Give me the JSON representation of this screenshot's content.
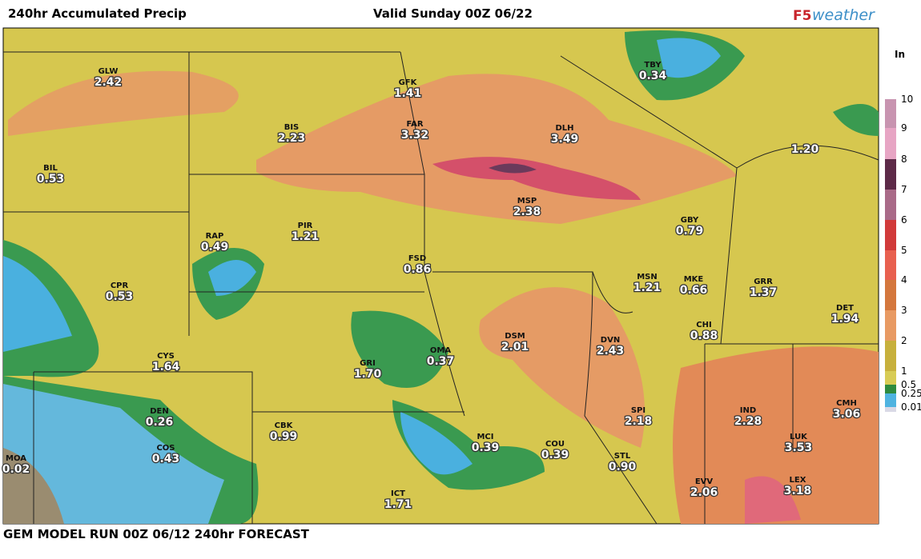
{
  "header": {
    "title": "240hr Accumulated Precip",
    "valid": "Valid Sunday 00Z 06/22",
    "logo_f5": "F5",
    "logo_weather": "weather"
  },
  "legend": {
    "unit": "In",
    "ticks": [
      "0.01",
      "0.25",
      "0.5",
      "1",
      "2",
      "3",
      "4",
      "5",
      "6",
      "7",
      "8",
      "9",
      "10"
    ],
    "colors": [
      "#d9d9e6",
      "#4fb3e0",
      "#2e8b3e",
      "#d8cc55",
      "#c7b03c",
      "#e89a63",
      "#d4773d",
      "#e8604f",
      "#d13a3a",
      "#a96a88",
      "#5d2a48",
      "#e7a5c4",
      "#c894b0"
    ]
  },
  "stations": [
    {
      "code": "GLW",
      "value": "2.42"
    },
    {
      "code": "GFK",
      "value": "1.41"
    },
    {
      "code": "TBY",
      "value": "0.34"
    },
    {
      "code": "BIS",
      "value": "2.23"
    },
    {
      "code": "FAR",
      "value": "3.32"
    },
    {
      "code": "DLH",
      "value": "3.49"
    },
    {
      "value": "1.20"
    },
    {
      "code": "BIL",
      "value": "0.53"
    },
    {
      "code": "MSP",
      "value": "2.38"
    },
    {
      "code": "GBY",
      "value": "0.79"
    },
    {
      "code": "RAP",
      "value": "0.49"
    },
    {
      "code": "PIR",
      "value": "1.21"
    },
    {
      "code": "FSD",
      "value": "0.86"
    },
    {
      "code": "MSN",
      "value": "1.21"
    },
    {
      "code": "MKE",
      "value": "0.66"
    },
    {
      "code": "GRR",
      "value": "1.37"
    },
    {
      "code": "CPR",
      "value": "0.53"
    },
    {
      "code": "DET",
      "value": "1.94"
    },
    {
      "code": "CHI",
      "value": "0.88"
    },
    {
      "code": "DSM",
      "value": "2.01"
    },
    {
      "code": "DVN",
      "value": "2.43"
    },
    {
      "code": "OMA",
      "value": "0.37"
    },
    {
      "code": "CYS",
      "value": "1.64"
    },
    {
      "code": "GRI",
      "value": "1.70"
    },
    {
      "code": "CMH",
      "value": "3.06"
    },
    {
      "code": "DEN",
      "value": "0.26"
    },
    {
      "code": "IND",
      "value": "2.28"
    },
    {
      "code": "SPI",
      "value": "2.18"
    },
    {
      "code": "CBK",
      "value": "0.99"
    },
    {
      "code": "MCI",
      "value": "0.39"
    },
    {
      "code": "COU",
      "value": "0.39"
    },
    {
      "code": "LUK",
      "value": "3.53"
    },
    {
      "code": "COS",
      "value": "0.43"
    },
    {
      "code": "MOA",
      "value": "0.02"
    },
    {
      "code": "STL",
      "value": "0.90"
    },
    {
      "code": "EVV",
      "value": "2.06"
    },
    {
      "code": "LEX",
      "value": "3.18"
    },
    {
      "code": "ICT",
      "value": "1.71"
    }
  ],
  "footer": "GEM MODEL RUN 00Z 06/12 240hr FORECAST"
}
